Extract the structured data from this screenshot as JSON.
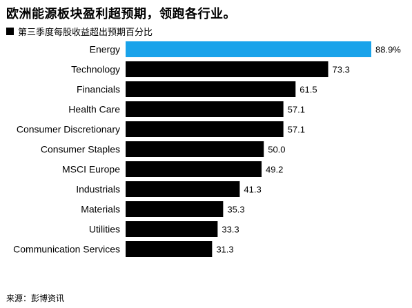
{
  "title": "欧洲能源板块盈利超预期，领跑各行业。",
  "source": "来源：彭博资讯",
  "colors": {
    "highlight": "#1aa3ea",
    "default": "#000000"
  },
  "chart_data": {
    "type": "bar",
    "orientation": "horizontal",
    "series": [
      {
        "name": "第三季度每股收益超出预期百分比"
      }
    ],
    "categories": [
      "Energy",
      "Technology",
      "Financials",
      "Health Care",
      "Consumer Discretionary",
      "Consumer Staples",
      "MSCI Europe",
      "Industrials",
      "Materials",
      "Utilities",
      "Communication Services"
    ],
    "values": [
      88.9,
      73.3,
      61.5,
      57.1,
      57.1,
      50.0,
      49.2,
      41.3,
      35.3,
      33.3,
      31.3
    ],
    "value_labels": [
      "88.9%",
      "73.3",
      "61.5",
      "57.1",
      "57.1",
      "50.0",
      "49.2",
      "41.3",
      "35.3",
      "33.3",
      "31.3"
    ],
    "highlight_category": "Energy",
    "xlim": [
      0,
      88.9
    ],
    "grid": false,
    "legend": "top-left"
  }
}
